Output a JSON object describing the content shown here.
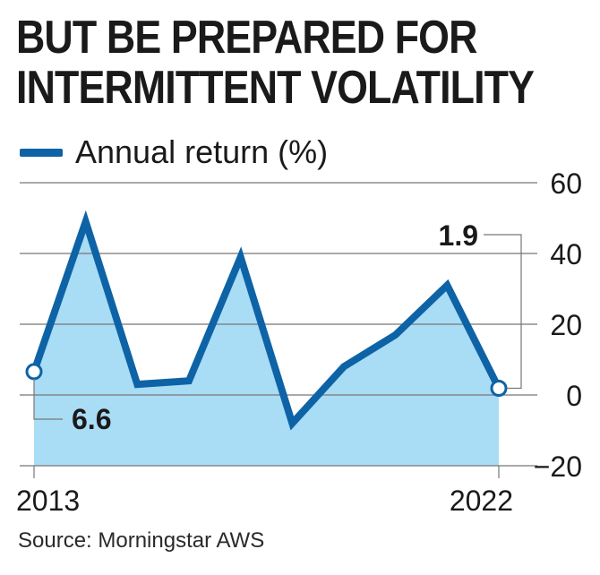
{
  "title": {
    "line1": "BUT BE PREPARED FOR",
    "line2": "INTERMITTENT VOLATILITY"
  },
  "legend": {
    "label": "Annual return (%)"
  },
  "source": "Source: Morningstar AWS",
  "colors": {
    "line": "#0d63a5",
    "fill": "#a9dcf5",
    "grid": "#777777",
    "text": "#1a1a1a"
  },
  "chart_data": {
    "type": "area",
    "x": [
      2013,
      2014,
      2015,
      2016,
      2017,
      2018,
      2019,
      2020,
      2021,
      2022
    ],
    "series": [
      {
        "name": "Annual return (%)",
        "values": [
          6.6,
          49,
          3,
          4,
          39,
          -8,
          8,
          17,
          31,
          1.9
        ]
      }
    ],
    "ylim": [
      -20,
      60
    ],
    "yticks": [
      60,
      40,
      20,
      0,
      -20
    ],
    "xtick_labels": [
      "2013",
      "2022"
    ],
    "annotations": [
      {
        "x": 2013,
        "label": "6.6"
      },
      {
        "x": 2022,
        "label": "1.9"
      }
    ],
    "y_axis_position": "right",
    "grid": true
  }
}
